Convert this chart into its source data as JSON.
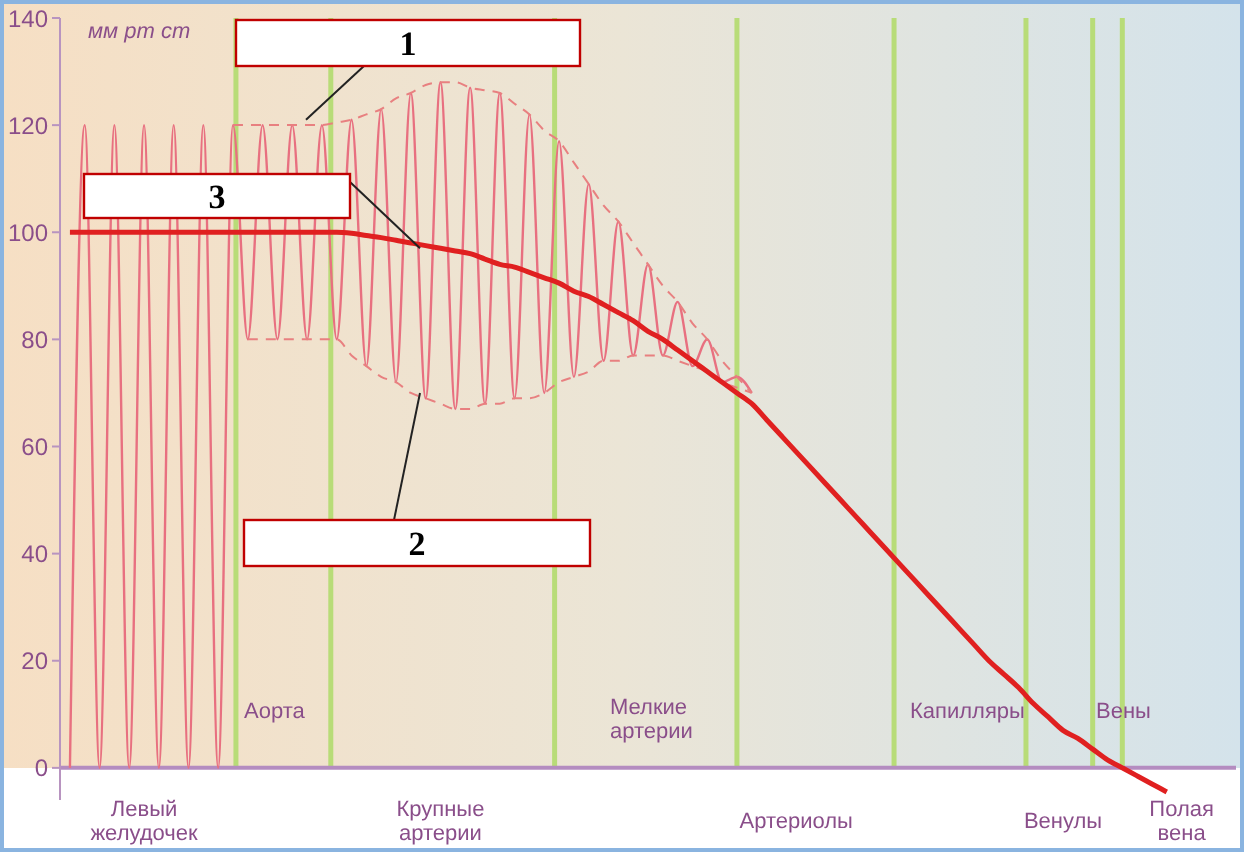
{
  "chart_data": {
    "type": "line",
    "ylabel": "мм рт ст",
    "categories": [
      null,
      null,
      null,
      null,
      null,
      "Левый желудочек",
      null,
      null,
      null,
      null,
      null,
      null,
      null,
      null,
      null,
      null,
      null,
      null,
      null,
      null,
      null,
      null,
      null,
      null,
      null,
      "Крупные артерии",
      null,
      null,
      null,
      null,
      null,
      null,
      null,
      null,
      null,
      null,
      null,
      null,
      null,
      null,
      null,
      null,
      null,
      null,
      null,
      null,
      null,
      null,
      null,
      "Артериолы",
      null,
      null,
      null,
      null,
      null,
      null,
      null,
      null,
      null,
      null,
      null,
      null,
      null,
      null,
      null,
      null,
      null,
      "Венулы",
      null,
      null,
      null,
      null,
      null,
      null,
      null,
      "Полая вена",
      null,
      null,
      null
    ],
    "ylim": [
      -6,
      140
    ],
    "yticks": [
      0,
      20,
      40,
      60,
      80,
      100,
      120,
      140
    ],
    "grid": false,
    "legend": false,
    "marker": "none",
    "series": [
      {
        "color": "#e87080",
        "values": [
          0,
          120,
          0,
          120,
          0,
          120,
          0,
          120,
          0,
          120,
          0,
          120,
          80,
          120,
          80,
          120,
          80,
          120,
          80,
          121,
          75,
          123,
          72,
          126,
          69,
          128,
          67,
          127,
          68,
          126,
          69,
          122,
          70,
          117,
          73,
          109,
          76,
          102,
          77,
          94,
          77,
          87,
          75,
          80,
          72,
          73,
          70,
          null,
          null,
          null,
          null,
          null,
          null,
          null,
          null,
          null,
          null,
          null,
          null,
          null,
          null,
          null,
          null,
          null,
          null,
          null,
          null,
          null,
          null,
          null,
          null,
          null,
          null,
          null,
          null,
          null,
          null,
          null,
          null
        ]
      },
      {
        "color": "#e88080",
        "line_style": "dashed",
        "values": [
          null,
          null,
          null,
          null,
          null,
          null,
          null,
          null,
          null,
          null,
          null,
          120,
          120,
          120,
          120,
          120,
          120,
          120,
          120.5,
          121,
          122,
          123,
          125,
          126,
          127.5,
          128,
          128,
          127,
          126.5,
          126,
          124,
          122,
          119,
          117,
          113,
          109,
          105,
          102,
          98,
          94,
          90,
          87,
          83,
          80,
          76,
          73,
          70,
          null,
          null,
          null,
          null,
          null,
          null,
          null,
          null,
          null,
          null,
          null,
          null,
          null,
          null,
          null,
          null,
          null,
          null,
          null,
          null,
          null,
          null,
          null,
          null,
          null,
          null,
          null,
          null,
          null,
          null,
          null,
          null
        ]
      },
      {
        "color": "#e88080",
        "line_style": "dashed",
        "values": [
          null,
          null,
          null,
          null,
          null,
          null,
          null,
          null,
          null,
          null,
          null,
          null,
          80,
          80,
          80,
          80,
          80,
          80,
          80,
          77,
          75,
          73,
          72,
          70,
          69,
          68,
          67,
          67,
          68,
          68,
          69,
          69,
          70,
          72,
          73,
          74,
          76,
          76,
          77,
          77,
          77,
          76,
          75,
          74,
          72,
          71,
          70,
          null,
          null,
          null,
          null,
          null,
          null,
          null,
          null,
          null,
          null,
          null,
          null,
          null,
          null,
          null,
          null,
          null,
          null,
          null,
          null,
          null,
          null,
          null,
          null,
          null,
          null,
          null,
          null,
          null,
          null,
          null,
          null
        ]
      },
      {
        "color": "#e02020",
        "values": [
          100,
          100,
          100,
          100,
          100,
          100,
          100,
          100,
          100,
          100,
          100,
          100,
          100,
          100,
          100,
          100,
          100,
          100,
          100,
          99.8,
          99.4,
          99,
          98.5,
          98,
          97.5,
          97,
          96.5,
          96,
          95,
          94,
          93.5,
          92.5,
          91.5,
          90.5,
          89,
          88,
          86.5,
          85,
          83.5,
          81.5,
          80,
          78,
          76,
          74,
          72,
          70,
          68,
          65,
          62,
          59,
          56,
          53,
          50,
          47,
          44,
          41,
          38,
          35,
          32,
          29,
          26,
          23,
          20,
          17.5,
          15,
          12,
          9.5,
          7,
          5.5,
          3.5,
          1.5,
          0,
          -1.5,
          -3,
          -4.5,
          null,
          null,
          null,
          null
        ]
      }
    ],
    "annotations": [
      "Аорта",
      "Мелкие артерии",
      "Капилляры",
      "Вены",
      {
        "text": "1",
        "y": 121
      },
      {
        "text": "3",
        "y": 97
      },
      {
        "text": "2",
        "y": 70
      }
    ]
  }
}
